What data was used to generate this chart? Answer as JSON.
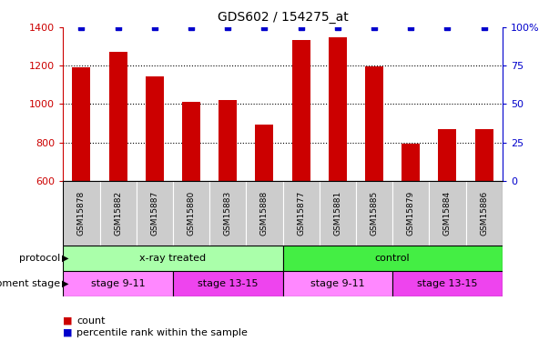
{
  "title": "GDS602 / 154275_at",
  "samples": [
    "GSM15878",
    "GSM15882",
    "GSM15887",
    "GSM15880",
    "GSM15883",
    "GSM15888",
    "GSM15877",
    "GSM15881",
    "GSM15885",
    "GSM15879",
    "GSM15884",
    "GSM15886"
  ],
  "counts": [
    1190,
    1270,
    1145,
    1010,
    1020,
    895,
    1335,
    1350,
    1195,
    795,
    868,
    870
  ],
  "percentile_ranks": [
    100,
    100,
    100,
    100,
    100,
    100,
    100,
    100,
    100,
    100,
    100,
    100
  ],
  "ylim_left": [
    600,
    1400
  ],
  "ylim_right": [
    0,
    100
  ],
  "yticks_left": [
    600,
    800,
    1000,
    1200,
    1400
  ],
  "yticks_right": [
    0,
    25,
    50,
    75,
    100
  ],
  "bar_color": "#cc0000",
  "dot_color": "#0000cc",
  "bar_width": 0.5,
  "protocol_groups": [
    {
      "label": "x-ray treated",
      "start": 0,
      "end": 6,
      "color": "#aaffaa"
    },
    {
      "label": "control",
      "start": 6,
      "end": 12,
      "color": "#44ee44"
    }
  ],
  "stage_groups": [
    {
      "label": "stage 9-11",
      "start": 0,
      "end": 3,
      "color": "#ff88ff"
    },
    {
      "label": "stage 13-15",
      "start": 3,
      "end": 6,
      "color": "#ee44ee"
    },
    {
      "label": "stage 9-11",
      "start": 6,
      "end": 9,
      "color": "#ff88ff"
    },
    {
      "label": "stage 13-15",
      "start": 9,
      "end": 12,
      "color": "#ee44ee"
    }
  ],
  "right_axis_color": "#0000cc",
  "legend_items": [
    {
      "label": "count",
      "color": "#cc0000"
    },
    {
      "label": "percentile rank within the sample",
      "color": "#0000cc"
    }
  ],
  "row_labels": [
    "protocol",
    "development stage"
  ],
  "tick_label_color": "#cc0000",
  "title_color": "#000000",
  "sample_box_color": "#cccccc"
}
